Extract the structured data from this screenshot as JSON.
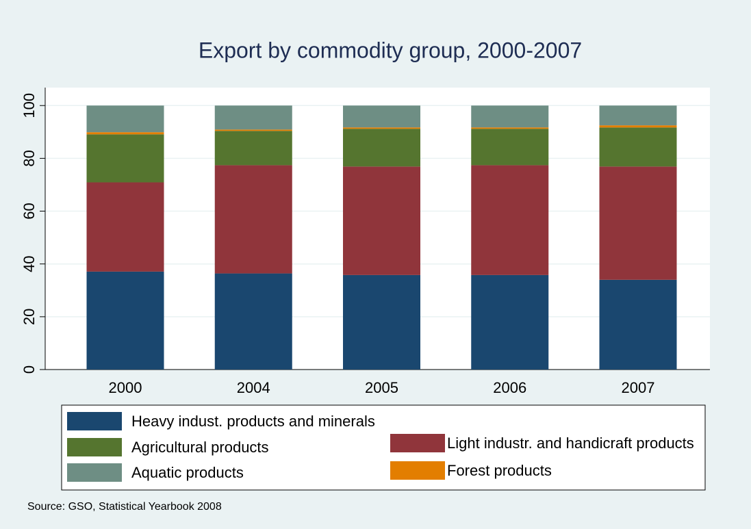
{
  "chart_data": {
    "type": "stacked-bar",
    "title": "Export by commodity group, 2000-2007",
    "source": "Source: GSO, Statistical Yearbook 2008",
    "categories": [
      "2000",
      "2004",
      "2005",
      "2006",
      "2007"
    ],
    "series": [
      {
        "name": "Heavy indust. products and minerals",
        "color": "#1a476f",
        "values": [
          37.1,
          36.4,
          35.8,
          35.8,
          34.0
        ]
      },
      {
        "name": "Light industr. and handicraft products",
        "color": "#90353b",
        "values": [
          33.8,
          41.0,
          41.1,
          41.6,
          42.9
        ]
      },
      {
        "name": "Agricultural products",
        "color": "#55752f",
        "values": [
          18.2,
          13.0,
          14.3,
          13.8,
          14.8
        ]
      },
      {
        "name": "Forest products",
        "color": "#e37e00",
        "values": [
          0.8,
          0.5,
          0.5,
          0.5,
          0.8
        ]
      },
      {
        "name": "Aquatic products",
        "color": "#6e8e84",
        "values": [
          10.1,
          9.1,
          8.3,
          8.3,
          7.5
        ]
      }
    ],
    "ylim": [
      0,
      106.8
    ],
    "yticks": [
      0,
      20,
      40,
      60,
      80,
      100
    ],
    "grid": true
  }
}
